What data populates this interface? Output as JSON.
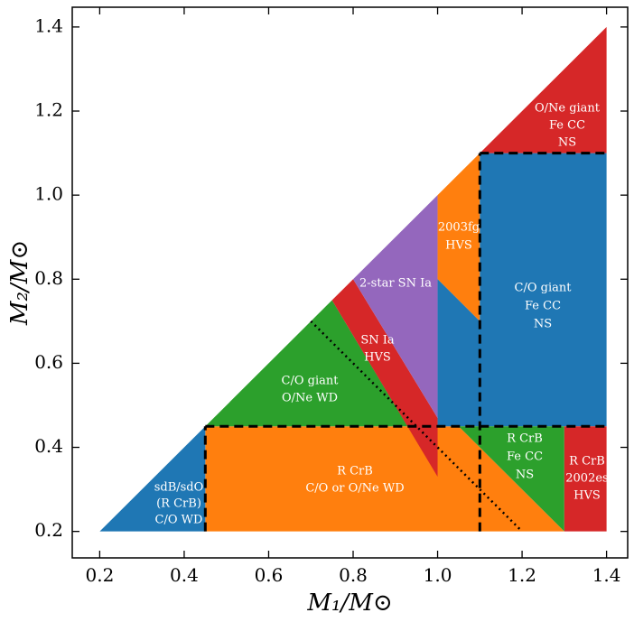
{
  "chart_data": {
    "type": "region",
    "xlabel": "M₁/M⊙",
    "ylabel": "M₂/M⊙",
    "xlim": [
      0.135,
      1.45
    ],
    "ylim": [
      0.137,
      1.447
    ],
    "xticks": [
      0.2,
      0.4,
      0.6,
      0.8,
      {
        "value": 1.0,
        "label": "1.0"
      },
      1.2,
      1.4
    ],
    "yticks": [
      0.2,
      0.4,
      0.6,
      0.8,
      {
        "value": 1.0,
        "label": "1.0"
      },
      1.2,
      1.4
    ],
    "regions": [
      {
        "label": [
          "R CrB",
          "C/O or O/Ne WD"
        ],
        "color": "#ff7f0e",
        "x": [
          0.45,
          1.3,
          1.05,
          0.45
        ],
        "y": [
          0.2,
          0.2,
          0.45,
          0.45
        ]
      },
      {
        "label": [
          "sdB/sdO",
          "(R CrB)",
          "C/O WD"
        ],
        "color": "#1f77b4",
        "x": [
          0.2,
          0.45,
          0.45
        ],
        "y": [
          0.2,
          0.2,
          0.45
        ]
      },
      {
        "label": [
          "C/O giant",
          "O/Ne WD"
        ],
        "color": "#2ca02c",
        "x": [
          0.45,
          0.75,
          0.929
        ],
        "y": [
          0.45,
          0.75,
          0.45
        ]
      },
      {
        "label": [
          "SN Ia",
          "HVS"
        ],
        "color": "#d62728",
        "x": [
          0.75,
          0.8,
          1.0,
          1.0
        ],
        "y": [
          0.75,
          0.8,
          0.47,
          0.33
        ]
      },
      {
        "label": [
          "2-star SN Ia"
        ],
        "color": "#9467bd",
        "x": [
          0.8,
          1.0,
          1.0
        ],
        "y": [
          0.8,
          1.0,
          0.47
        ]
      },
      {
        "label": [
          "2003fg",
          "HVS"
        ],
        "color": "#ff7f0e",
        "x": [
          1.0,
          1.1,
          1.1,
          1.0
        ],
        "y": [
          1.0,
          1.1,
          0.7,
          0.8
        ]
      },
      {
        "label": [
          "C/O giant",
          "Fe CC",
          "NS"
        ],
        "color": "#1f77b4",
        "x": [
          1.0,
          1.1,
          1.1,
          1.4,
          1.4,
          1.0
        ],
        "y": [
          0.8,
          0.7,
          1.1,
          1.1,
          0.45,
          0.45
        ]
      },
      {
        "label": [
          "O/Ne giant",
          "Fe CC",
          "NS"
        ],
        "color": "#d62728",
        "x": [
          1.1,
          1.4,
          1.4
        ],
        "y": [
          1.1,
          1.4,
          1.1
        ]
      },
      {
        "label": [
          "R CrB",
          "Fe CC",
          "NS"
        ],
        "color": "#2ca02c",
        "x": [
          1.05,
          1.3,
          1.3
        ],
        "y": [
          0.45,
          0.45,
          0.2
        ]
      },
      {
        "label": [
          "R CrB",
          "2002es",
          "HVS"
        ],
        "color": "#d62728",
        "x": [
          1.3,
          1.4,
          1.4,
          1.3
        ],
        "y": [
          0.2,
          0.2,
          0.45,
          0.45
        ]
      }
    ],
    "lines": [
      {
        "style": "dashed",
        "x": [
          0.45,
          1.4
        ],
        "y": [
          0.45,
          0.45
        ]
      },
      {
        "style": "dashed",
        "x": [
          0.45,
          0.45
        ],
        "y": [
          0.2,
          0.45
        ]
      },
      {
        "style": "dashed",
        "x": [
          1.1,
          1.1
        ],
        "y": [
          0.2,
          1.1
        ]
      },
      {
        "style": "dashed",
        "x": [
          1.1,
          1.4
        ],
        "y": [
          1.1,
          1.1
        ]
      },
      {
        "style": "dotted",
        "x": [
          0.7,
          1.2
        ],
        "y": [
          0.7,
          0.2
        ]
      }
    ]
  }
}
